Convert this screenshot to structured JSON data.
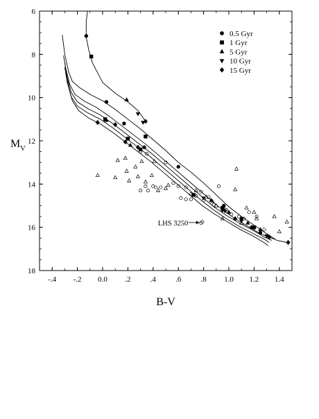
{
  "chart_data": {
    "type": "scatter",
    "xlabel": "B-V",
    "ylabel_main": "M",
    "ylabel_sub": "V",
    "xlim": [
      -0.5,
      1.5
    ],
    "ylim": [
      18,
      6
    ],
    "y_inverted": true,
    "grid": false,
    "legend_position": "top-right",
    "x_ticks": [
      {
        "value": -0.4,
        "label": "-.4"
      },
      {
        "value": -0.2,
        "label": "-.2"
      },
      {
        "value": 0.0,
        "label": "0.0"
      },
      {
        "value": 0.2,
        "label": ".2"
      },
      {
        "value": 0.4,
        "label": ".4"
      },
      {
        "value": 0.6,
        "label": ".6"
      },
      {
        "value": 0.8,
        "label": ".8"
      },
      {
        "value": 1.0,
        "label": "1.0"
      },
      {
        "value": 1.2,
        "label": "1.2"
      },
      {
        "value": 1.4,
        "label": "1.4"
      }
    ],
    "y_ticks": [
      {
        "value": 6,
        "label": "6"
      },
      {
        "value": 8,
        "label": "8"
      },
      {
        "value": 10,
        "label": "10"
      },
      {
        "value": 12,
        "label": "12"
      },
      {
        "value": 14,
        "label": "14"
      },
      {
        "value": 16,
        "label": "16"
      },
      {
        "value": 18,
        "label": "18"
      }
    ],
    "legend": [
      {
        "name": "0.5 Gyr",
        "marker": "circle"
      },
      {
        "name": "1 Gyr",
        "marker": "square"
      },
      {
        "name": "5 Gyr",
        "marker": "triangle-up"
      },
      {
        "name": "10 Gyr",
        "marker": "triangle-down"
      },
      {
        "name": "15 Gyr",
        "marker": "diamond"
      }
    ],
    "curves": [
      [
        [
          -0.12,
          6.0
        ],
        [
          -0.13,
          6.5
        ],
        [
          -0.13,
          7.2
        ],
        [
          -0.11,
          7.8
        ],
        [
          -0.08,
          8.4
        ],
        [
          0.0,
          9.3
        ],
        [
          0.1,
          9.8
        ],
        [
          0.2,
          10.2
        ],
        [
          0.28,
          10.6
        ],
        [
          0.34,
          11.1
        ]
      ],
      [
        [
          -0.32,
          7.1
        ],
        [
          -0.3,
          8.0
        ],
        [
          -0.27,
          8.8
        ],
        [
          -0.24,
          9.25
        ],
        [
          -0.18,
          9.55
        ],
        [
          -0.1,
          9.85
        ],
        [
          0.0,
          10.15
        ],
        [
          0.1,
          10.55
        ],
        [
          0.2,
          11.0
        ],
        [
          0.3,
          11.45
        ],
        [
          0.4,
          11.95
        ],
        [
          0.5,
          12.45
        ],
        [
          0.6,
          13.0
        ],
        [
          0.7,
          13.45
        ],
        [
          0.8,
          13.95
        ],
        [
          0.9,
          14.5
        ],
        [
          1.0,
          15.05
        ],
        [
          1.1,
          15.5
        ],
        [
          1.2,
          15.9
        ],
        [
          1.3,
          16.3
        ],
        [
          1.38,
          16.6
        ],
        [
          1.46,
          16.7
        ]
      ],
      [
        [
          -0.31,
          8.05
        ],
        [
          -0.29,
          8.7
        ],
        [
          -0.26,
          9.4
        ],
        [
          -0.22,
          9.85
        ],
        [
          -0.15,
          10.15
        ],
        [
          -0.05,
          10.45
        ],
        [
          0.05,
          10.85
        ],
        [
          0.15,
          11.3
        ],
        [
          0.25,
          11.75
        ],
        [
          0.35,
          12.2
        ],
        [
          0.45,
          12.7
        ],
        [
          0.55,
          13.2
        ],
        [
          0.65,
          13.7
        ],
        [
          0.75,
          14.2
        ],
        [
          0.85,
          14.7
        ],
        [
          0.95,
          15.2
        ],
        [
          1.05,
          15.6
        ],
        [
          1.15,
          15.95
        ],
        [
          1.25,
          16.3
        ],
        [
          1.36,
          16.55
        ]
      ],
      [
        [
          -0.3,
          8.4
        ],
        [
          -0.28,
          9.1
        ],
        [
          -0.25,
          9.75
        ],
        [
          -0.2,
          10.2
        ],
        [
          -0.12,
          10.5
        ],
        [
          -0.02,
          10.8
        ],
        [
          0.08,
          11.2
        ],
        [
          0.18,
          11.65
        ],
        [
          0.28,
          12.1
        ],
        [
          0.38,
          12.55
        ],
        [
          0.48,
          13.05
        ],
        [
          0.58,
          13.55
        ],
        [
          0.68,
          14.05
        ],
        [
          0.78,
          14.55
        ],
        [
          0.88,
          15.05
        ],
        [
          0.98,
          15.45
        ],
        [
          1.08,
          15.8
        ],
        [
          1.18,
          16.1
        ],
        [
          1.28,
          16.45
        ],
        [
          1.34,
          16.6
        ]
      ],
      [
        [
          -0.3,
          8.6
        ],
        [
          -0.28,
          9.3
        ],
        [
          -0.25,
          9.95
        ],
        [
          -0.2,
          10.4
        ],
        [
          -0.12,
          10.7
        ],
        [
          -0.02,
          11.0
        ],
        [
          0.08,
          11.4
        ],
        [
          0.18,
          11.85
        ],
        [
          0.28,
          12.3
        ],
        [
          0.38,
          12.75
        ],
        [
          0.48,
          13.25
        ],
        [
          0.58,
          13.75
        ],
        [
          0.68,
          14.25
        ],
        [
          0.78,
          14.75
        ],
        [
          0.88,
          15.2
        ],
        [
          0.98,
          15.6
        ],
        [
          1.08,
          15.95
        ],
        [
          1.18,
          16.25
        ],
        [
          1.28,
          16.55
        ],
        [
          1.32,
          16.7
        ]
      ],
      [
        [
          -0.29,
          8.85
        ],
        [
          -0.27,
          9.5
        ],
        [
          -0.24,
          10.15
        ],
        [
          -0.19,
          10.6
        ],
        [
          -0.11,
          10.95
        ],
        [
          -0.01,
          11.25
        ],
        [
          0.09,
          11.65
        ],
        [
          0.19,
          12.1
        ],
        [
          0.29,
          12.55
        ],
        [
          0.39,
          13.0
        ],
        [
          0.49,
          13.5
        ],
        [
          0.59,
          14.0
        ],
        [
          0.69,
          14.5
        ],
        [
          0.79,
          15.0
        ],
        [
          0.89,
          15.4
        ],
        [
          0.99,
          15.75
        ],
        [
          1.09,
          16.1
        ],
        [
          1.19,
          16.4
        ],
        [
          1.29,
          16.75
        ],
        [
          1.31,
          16.85
        ]
      ]
    ],
    "series": [
      {
        "name": "0.5 Gyr",
        "marker": "circle",
        "points": [
          [
            -0.13,
            7.15
          ],
          [
            0.03,
            10.2
          ],
          [
            0.17,
            11.2
          ],
          [
            0.33,
            12.3
          ],
          [
            0.6,
            13.2
          ],
          [
            0.96,
            15.0
          ],
          [
            1.1,
            15.6
          ],
          [
            1.25,
            16.25
          ]
        ]
      },
      {
        "name": "1 Gyr",
        "marker": "square",
        "points": [
          [
            -0.09,
            8.1
          ],
          [
            0.02,
            11.0
          ],
          [
            0.2,
            11.9
          ],
          [
            0.34,
            11.8
          ],
          [
            0.3,
            12.4
          ],
          [
            0.72,
            14.5
          ],
          [
            0.95,
            15.1
          ],
          [
            1.2,
            16.0
          ]
        ]
      },
      {
        "name": "5 Gyr",
        "marker": "triangle-up",
        "points": [
          [
            0.19,
            10.1
          ],
          [
            0.03,
            11.05
          ],
          [
            0.22,
            12.2
          ],
          [
            0.86,
            14.75
          ],
          [
            1.0,
            15.3
          ],
          [
            1.15,
            15.8
          ],
          [
            1.25,
            16.1
          ]
        ]
      },
      {
        "name": "10 Gyr",
        "marker": "triangle-down",
        "points": [
          [
            0.28,
            10.75
          ],
          [
            0.32,
            11.15
          ],
          [
            0.8,
            14.65
          ],
          [
            0.97,
            15.25
          ],
          [
            1.1,
            15.7
          ],
          [
            1.2,
            16.0
          ],
          [
            1.3,
            16.4
          ]
        ]
      },
      {
        "name": "15 Gyr",
        "marker": "diamond",
        "points": [
          [
            0.34,
            11.1
          ],
          [
            -0.04,
            11.15
          ],
          [
            0.1,
            11.25
          ],
          [
            0.18,
            12.05
          ],
          [
            0.28,
            12.3
          ],
          [
            0.95,
            15.2
          ],
          [
            1.05,
            15.6
          ],
          [
            1.18,
            16.0
          ],
          [
            1.32,
            16.45
          ],
          [
            1.47,
            16.7
          ]
        ]
      }
    ],
    "open_triangles": [
      [
        0.12,
        12.9
      ],
      [
        0.18,
        12.8
      ],
      [
        0.26,
        13.2
      ],
      [
        0.31,
        12.95
      ],
      [
        0.41,
        12.95
      ],
      [
        -0.04,
        13.6
      ],
      [
        0.1,
        13.7
      ],
      [
        0.19,
        13.4
      ],
      [
        0.28,
        13.65
      ],
      [
        0.34,
        13.9
      ],
      [
        0.39,
        13.6
      ],
      [
        0.21,
        13.85
      ],
      [
        0.44,
        14.3
      ],
      [
        0.5,
        14.2
      ],
      [
        0.52,
        14.05
      ],
      [
        0.7,
        14.45
      ],
      [
        0.74,
        14.3
      ],
      [
        0.82,
        14.6
      ],
      [
        0.87,
        14.8
      ],
      [
        1.05,
        14.25
      ],
      [
        1.06,
        13.3
      ],
      [
        1.14,
        15.1
      ],
      [
        1.2,
        15.3
      ],
      [
        1.22,
        15.6
      ],
      [
        1.36,
        15.5
      ],
      [
        1.46,
        15.75
      ],
      [
        1.4,
        16.2
      ],
      [
        0.9,
        15.0
      ],
      [
        0.95,
        15.6
      ],
      [
        1.1,
        15.8
      ]
    ],
    "open_circles": [
      [
        0.3,
        12.5
      ],
      [
        0.35,
        12.6
      ],
      [
        0.34,
        14.1
      ],
      [
        0.3,
        14.3
      ],
      [
        0.36,
        14.3
      ],
      [
        0.4,
        14.1
      ],
      [
        0.42,
        14.15
      ],
      [
        0.46,
        14.15
      ],
      [
        0.5,
        13.0
      ],
      [
        0.56,
        13.95
      ],
      [
        0.6,
        14.1
      ],
      [
        0.62,
        14.65
      ],
      [
        0.66,
        14.7
      ],
      [
        0.7,
        14.7
      ],
      [
        0.74,
        14.55
      ],
      [
        0.78,
        14.35
      ],
      [
        0.8,
        14.75
      ],
      [
        0.84,
        14.6
      ],
      [
        0.88,
        14.95
      ],
      [
        0.92,
        14.1
      ],
      [
        0.96,
        15.1
      ],
      [
        0.98,
        15.2
      ],
      [
        1.02,
        15.4
      ],
      [
        1.08,
        15.5
      ],
      [
        1.12,
        15.6
      ],
      [
        1.16,
        15.3
      ],
      [
        1.22,
        15.5
      ],
      [
        1.28,
        16.1
      ],
      [
        0.79,
        15.75
      ],
      [
        0.78,
        15.8
      ],
      [
        0.66,
        14.15
      ]
    ],
    "annotation": {
      "text": "LHS 3250",
      "x": 0.79,
      "y": 15.78
    }
  }
}
